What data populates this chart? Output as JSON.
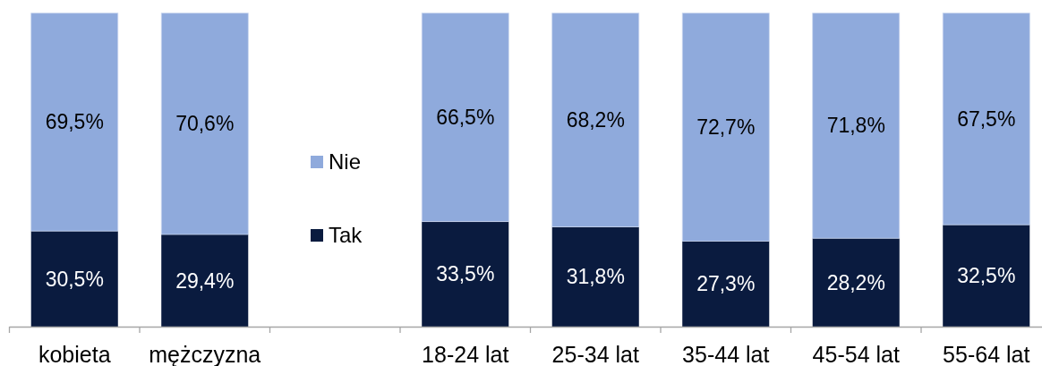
{
  "chart_data": {
    "type": "bar",
    "stacked": true,
    "categories": [
      "kobieta",
      "mężczyzna",
      null,
      "18-24 lat",
      "25-34 lat",
      "35-44 lat",
      "45-54 lat",
      "55-64 lat"
    ],
    "series": [
      {
        "name": "Tak",
        "color": "#0a1b3f",
        "values": [
          30.5,
          29.4,
          null,
          33.5,
          31.8,
          27.3,
          28.2,
          32.5
        ],
        "value_labels": [
          "30,5%",
          "29,4%",
          null,
          "33,5%",
          "31,8%",
          "27,3%",
          "28,2%",
          "32,5%"
        ]
      },
      {
        "name": "Nie",
        "color": "#8faadc",
        "values": [
          69.5,
          70.6,
          null,
          66.5,
          68.2,
          72.7,
          71.8,
          67.5
        ],
        "value_labels": [
          "69,5%",
          "70,6%",
          null,
          "66,5%",
          "68,2%",
          "72,7%",
          "71,8%",
          "67,5%"
        ]
      }
    ],
    "ylim": [
      0,
      100
    ],
    "tick_labels": "x",
    "legend": "left"
  }
}
